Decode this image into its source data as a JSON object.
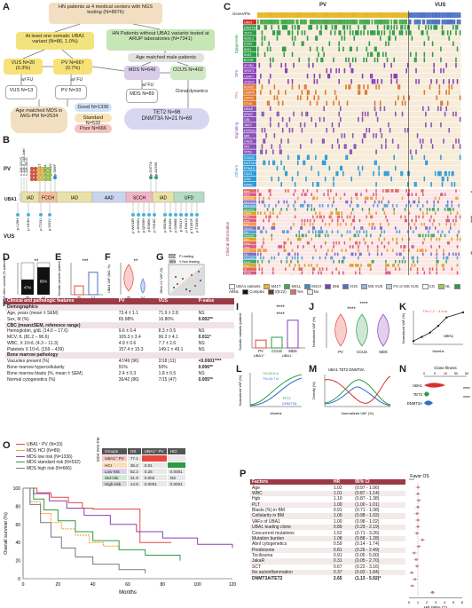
{
  "panelA": {
    "label": "A",
    "top_box": "HN patients at 4 medical centers with NGS testing (N=8976)",
    "left_box": "At least one somatic UBA1 variant (N=86, 1.0%)",
    "right_box": "HN Patients without UBA1 variants tested at ARUP laboratories (N=7341)",
    "age_matched_male": "Age matched male patients",
    "vus_box": "VUS N=20 (0.3%)",
    "pv_box": "PV N=66† (0.7%)",
    "mds_box": "MDS N=649",
    "ccus_box": "CCUS N=402",
    "wfu1": "w/ FU",
    "wfu2": "w/ FU",
    "wfu3": "w/ FU",
    "vus_fu": "VUS N=13",
    "pv_fu": "PV N=33",
    "mds_fu": "MDS N=89",
    "clonal": "Clonal dynamics",
    "tet2": "TET2 N=96",
    "dnmt3a": "DNMT3A N=21 N=69",
    "age_mds": "Age matched MDS in IWG-PM N=2534",
    "good": "Good N=1336",
    "standard": "Standard N=532",
    "poor": "Poor N=666"
  },
  "panelB": {
    "label": "B",
    "pv": "PV",
    "vus": "VUS",
    "gene": "UBA1",
    "pv_mutations": [
      "c.118-1G>C",
      "c.118-9_118-1del",
      "c.118-2A>C",
      "p.M41T",
      "p.M41L",
      "p.M41V",
      "p.S56F",
      "p.G477A",
      "p.A478S"
    ],
    "domains": [
      "IAD",
      "FCCH",
      "IAD",
      "AAD",
      "SCCH",
      "IAD",
      "UFD"
    ],
    "vus_mutations": [
      "p.L29H",
      "p.N13H",
      "p.T231I",
      "p.I201V",
      "p.W643R",
      "p.D569N",
      "p.Q559H",
      "p.E585K",
      "p.Y618C",
      "p.S819fs",
      "p.E945K",
      "p.G868E",
      "p.S911Y",
      "p.D901S",
      "p.T1052F",
      "p.T1005I"
    ]
  },
  "panelC": {
    "label": "C",
    "pv": "PV",
    "vus": "VUS",
    "genes_label": "Genes/Pts",
    "left_groups": [
      "Epigenetic",
      "SFs",
      "TFs",
      "Signaling",
      "Others"
    ],
    "genes": [
      "UBA1",
      "DNMT3A",
      "TET2",
      "ASXL1",
      "EZH2",
      "IDH1",
      "IDH2",
      "BCOR",
      "SF3B1",
      "SRSF2",
      "U2AF1",
      "ZRSR2",
      "RUNX1",
      "CEBPA",
      "GATA2",
      "ETV6",
      "NRAS",
      "KRAS",
      "CBL",
      "JAK2",
      "PTPN11",
      "MPL",
      "CALR",
      "NF1",
      "TP53",
      "STAG2",
      "NOTCH1",
      "PPM1D",
      "CUX1",
      "ATM",
      "NPM1"
    ],
    "clinical_label": "Clinical information",
    "clin_rows": [
      "Male",
      "MDS",
      "MDS-EB",
      "MDS-MLD",
      "MDS-SLD",
      "MDS-RS",
      "CMML",
      "MPN",
      "PCN",
      "LGL",
      "VEXAS",
      "Sex",
      "Vacuoles",
      "Skin",
      "Lung",
      "Vasc",
      "Joint",
      "Eye",
      "Chondritis",
      "Fever",
      "Pulm",
      "GI",
      "Renal",
      "Neuro",
      "Heme",
      "Thromb",
      "Other"
    ],
    "right_marks": [
      "*",
      "****",
      "**"
    ],
    "legend": [
      "UBA1 variants",
      "M41T",
      "M41L",
      "M41V",
      "S56",
      "VUS",
      "MS VUS",
      "FS or MS VUS",
      "CG",
      "NL",
      "ABNL",
      "Complex",
      "t(9;22)",
      "Yes",
      "No"
    ]
  },
  "panelD": {
    "label": "D",
    "ylabel": "W/ other variants (% patients)",
    "bars": [
      {
        "cat": "P",
        "with": 47,
        "without": 53
      },
      {
        "cat": "V",
        "with": 85,
        "without": 15
      }
    ],
    "sig": "**",
    "pct_labels": [
      "47%",
      "85%"
    ]
  },
  "panelE": {
    "label": "E",
    "ylabel": "Somatic variants /patient",
    "cats": [
      "P",
      "V"
    ],
    "values": [
      1.1,
      2.8
    ],
    "sig": "***",
    "ymax": 4
  },
  "panelF": {
    "label": "F",
    "ylabel": "UBA1 VAF (M/2, %)",
    "cats": [
      "P",
      "V"
    ],
    "sig": "**",
    "ymax": 100
  },
  "panelG": {
    "label": "G",
    "xlabel": "UBA1 VAF (M/2, %)",
    "ylabel": "Other LC VAF (%)",
    "legend": [
      "Leading",
      "Non leading"
    ],
    "pcts": [
      "83%",
      "40%"
    ],
    "groups": [
      "P",
      "V"
    ]
  },
  "panelH": {
    "label": "H",
    "header": [
      "Clinical and pathologic features",
      "PV",
      "VUS",
      "P-value"
    ],
    "rows": [
      {
        "k": "Demographics",
        "sec": true
      },
      {
        "k": "Age, years (mean ± SEM)",
        "pv": "73.4 ± 1.1",
        "vus": "71.9 ± 2.8",
        "p": "NS"
      },
      {
        "k": "Sex, M (%)",
        "pv": "65.98%",
        "vus": "16.80%",
        "p": "0.002**"
      },
      {
        "k": "CBC (mean±SEM, reference range)",
        "sec": true
      },
      {
        "k": "Hemoglobin, g/dL (14.6 – 17.6)",
        "pv": "9.6 ± 0.4",
        "vus": "8.3 ± 0.5",
        "p": "NS"
      },
      {
        "k": "MCV, fL (81.2 – 96.6)",
        "pv": "105.3 ± 3.4",
        "vus": "96.2 ± 4.1",
        "p": "0.011*"
      },
      {
        "k": "WBC, X 10⁹/L (4.3 – 11.3)",
        "pv": "4.9 ± 0.6",
        "vus": "7.7 ± 2.6",
        "p": "NS"
      },
      {
        "k": "Platelets X 10⁹/L (159 – 439)",
        "pv": "157.4 ± 15.3",
        "vus": "149.1 ± 49.1",
        "p": "NS"
      },
      {
        "k": "Bone marrow pathology",
        "sec": true
      },
      {
        "k": "Vacuoles present (%)",
        "pv": "47/49 (96)",
        "vus": "2/18 (11)",
        "p": "<0.0001****"
      },
      {
        "k": "Bone marrow hypercellularity",
        "pv": "91%",
        "vus": "50%",
        "p": "0.006**"
      },
      {
        "k": "Bone marrow blasts (%, mean ± SEM)",
        "pv": "2.4 ± 0.3",
        "vus": "1.8 ± 0.5",
        "p": "NS"
      },
      {
        "k": "Normal cytogenetics (%)",
        "pv": "36/42 (86)",
        "vus": "7/15 (47)",
        "p": "0.005**"
      }
    ]
  },
  "panelI": {
    "label": "I",
    "ylabel": "Somatic variants /patient",
    "cats": [
      "PV",
      "CCUS",
      "MDS"
    ],
    "group": "UBA1⁻",
    "pv_group": "UBA1⁺",
    "values": [
      1.1,
      1.5,
      3.9
    ],
    "sig": "****",
    "ymax": 5
  },
  "panelJ": {
    "label": "J",
    "ylabel": "Normalized VAF (%)",
    "cats": [
      "PV",
      "CCUS",
      "MDS"
    ],
    "sig": "****",
    "ymax": 100
  },
  "panelK": {
    "label": "K",
    "xlabel": "Months",
    "ylabel": "Normalized VAF (%)",
    "annot": "T½=7.2 ~ 4.8 m",
    "series": "UBA1",
    "x": [
      0,
      3,
      6,
      9,
      12,
      18
    ],
    "y": [
      10,
      22,
      35,
      55,
      80,
      95
    ]
  },
  "panelL": {
    "label": "L",
    "xlabel": "Months",
    "ylabel": "Normalized VAF (%)",
    "annot": [
      "T½=20.6 m",
      "T½=33.7 m"
    ],
    "series": [
      "TET2",
      "DNMT3A"
    ]
  },
  "panelM": {
    "label": "M",
    "title": "UBA1 TET2 DNMT3A",
    "xlabel": "Normalized VAF (%)",
    "ylabel": "Density (%)"
  },
  "panelN": {
    "label": "N",
    "title": "Clone fitness",
    "ticks": [
      "0",
      "5",
      "10",
      "50",
      "60"
    ],
    "rows": [
      "UBA1",
      "TET2",
      "DNMT3A"
    ],
    "sig": [
      "****",
      "****"
    ]
  },
  "panelO": {
    "label": "O",
    "legend": [
      "UBA1⁺ PV (N=33)",
      "MDS HCI (N=89)",
      "MDS low risk (N=1336)",
      "MDS standard risk (N=532)",
      "MDS high risk (N=666)"
    ],
    "ylabel": "Overall survival (%)",
    "xlabel": "Months",
    "xticks": [
      "0",
      "20",
      "40",
      "60",
      "80",
      "100",
      "120"
    ],
    "yticks": [
      "0",
      "20",
      "40",
      "60",
      "80",
      "100"
    ],
    "table_header": [
      "Groups",
      "OS",
      "UBA1⁺ PV",
      "HCI"
    ],
    "table_rows": [
      {
        "g": "UBA1⁺ PV",
        "os": "77.1",
        "a": "",
        "b": ""
      },
      {
        "g": "HCI",
        "os": "36.2",
        "a": "0.01",
        "b": ""
      },
      {
        "g": "Low risk",
        "os": "52.2",
        "a": "0.25",
        "b": "0.0001"
      },
      {
        "g": "Std-risk",
        "os": "31.9",
        "a": "0.002",
        "b": "NS"
      },
      {
        "g": "High-risk",
        "os": "14.5",
        "a": "0.0001",
        "b": "0.0001"
      }
    ],
    "side": "MDS IWG-PM"
  },
  "panelP": {
    "label": "P",
    "title": "Favor OS",
    "header": [
      "Factors",
      "HR",
      "95% CI"
    ],
    "rows": [
      {
        "f": "Age",
        "hr": "1.02",
        "ci": "(0.97 - 1.06)",
        "v": 1.02
      },
      {
        "f": "WBC",
        "hr": "1.01",
        "ci": "(0.87 - 1.14)",
        "v": 1.01
      },
      {
        "f": "Hgb",
        "hr": "1.10",
        "ci": "(0.87 - 1.38)",
        "v": 1.1
      },
      {
        "f": "PLT",
        "hr": "1.00",
        "ci": "(1.00 - 1.01)",
        "v": 1.0
      },
      {
        "f": "Blasts (%) in BM",
        "hr": "0.91",
        "ci": "(0.71 - 1.08)",
        "v": 0.91
      },
      {
        "f": "Cellularity in BM",
        "hr": "1.00",
        "ci": "(0.98 - 1.02)",
        "v": 1.0
      },
      {
        "f": "VAFs of UBA1",
        "hr": "1.00",
        "ci": "(0.98 - 1.02)",
        "v": 1.0
      },
      {
        "f": "UBA1 leading clone",
        "hr": "0.89",
        "ci": "(0.29 - 2.19)",
        "v": 0.89
      },
      {
        "f": "Concurrent mutations",
        "hr": "1.52",
        "ci": "(0.71 - 3.26)",
        "v": 1.52
      },
      {
        "f": "Mutation burden",
        "hr": "1.08",
        "ci": "(0.88 - 1.28)",
        "v": 1.08
      },
      {
        "f": "Abnl cytogenetics",
        "hr": "0.59",
        "ci": "(0.14 - 1.74)",
        "v": 0.59
      },
      {
        "f": "Prednisone",
        "hr": "0.81",
        "ci": "(0.26 - 2.49)",
        "v": 0.81
      },
      {
        "f": "Tocilizuma",
        "hr": "0.91",
        "ci": "(0.05 - 5.00)",
        "v": 0.91
      },
      {
        "f": "JakaR",
        "hr": "0.31",
        "ci": "(0.05 - 2.70)",
        "v": 0.31
      },
      {
        "f": "SCT",
        "hr": "0.67",
        "ci": "(0.22 - 3.16)",
        "v": 0.67
      },
      {
        "f": "No autoinflammation",
        "hr": "0.37",
        "ci": "(0.02 - 1.84)",
        "v": 0.37
      },
      {
        "f": "DNMT3A/TET2",
        "hr": "2.65",
        "ci": "(1.13 - 5.92)*",
        "v": 2.65
      }
    ],
    "xlabel": "HR (95% CI)",
    "xticks": [
      "0",
      "1",
      "2",
      "3",
      "4",
      "5",
      "6"
    ]
  },
  "colors": {
    "pv": "#e8473f",
    "vus": "#4b71c7",
    "accent": "#9c3a46",
    "green": "#2e9b46",
    "purple": "#8c3fb7",
    "orange": "#f39a25"
  }
}
